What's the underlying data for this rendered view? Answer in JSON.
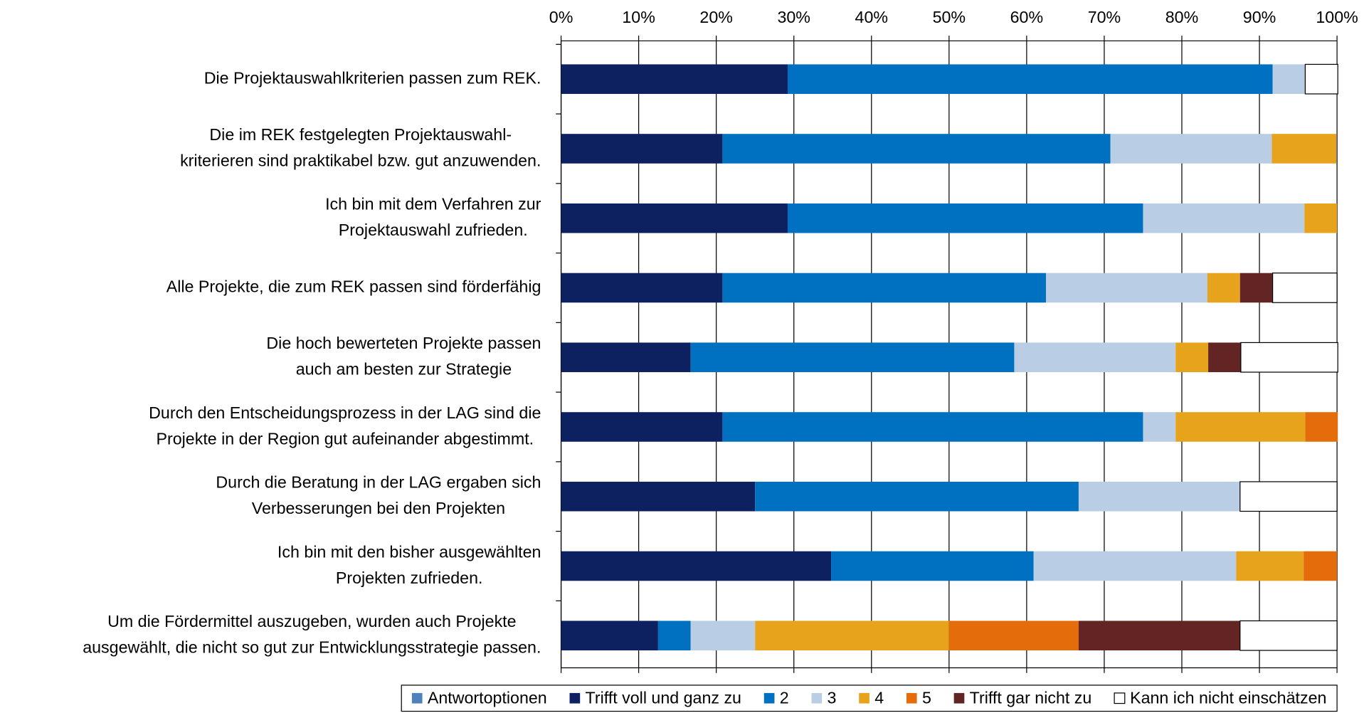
{
  "chart_data": {
    "type": "stacked-bar-horizontal",
    "categories": [
      [
        "Die Projektauswahlkriterien passen zum REK."
      ],
      [
        "Die im REK festgelegten Projektauswahl-",
        "kriterieren sind praktikabel bzw. gut anzuwenden."
      ],
      [
        "Ich bin mit dem Verfahren zur",
        "Projektauswahl zufrieden."
      ],
      [
        "Alle Projekte, die zum REK passen sind förderfähig"
      ],
      [
        "Die hoch bewerteten Projekte passen",
        "auch am besten zur Strategie"
      ],
      [
        "Durch den Entscheidungsprozess in der LAG sind die",
        "Projekte in der Region gut aufeinander abgestimmt."
      ],
      [
        "Durch die Beratung in der LAG ergaben sich",
        "Verbesserungen bei den Projekten"
      ],
      [
        "Ich bin mit den bisher ausgewählten",
        "Projekten zufrieden."
      ],
      [
        "Um die Fördermittel auszugeben, wurden auch Projekte",
        "ausgewählt, die nicht so gut zur Entwicklungsstrategie passen."
      ]
    ],
    "series": [
      {
        "name": "Antwortoptionen",
        "color": "#4f81bd",
        "values": [
          null,
          null,
          null,
          null,
          null,
          null,
          null,
          null,
          null
        ]
      },
      {
        "name": "Trifft voll und ganz zu",
        "color": "#0d2160",
        "values": [
          29.2,
          20.8,
          29.2,
          20.8,
          16.7,
          20.8,
          25.0,
          34.8,
          12.5
        ]
      },
      {
        "name": "2",
        "color": "#0070c0",
        "values": [
          62.5,
          50.0,
          45.8,
          41.7,
          41.7,
          54.2,
          41.7,
          26.1,
          4.2
        ]
      },
      {
        "name": "3",
        "color": "#b9cde5",
        "values": [
          4.2,
          20.8,
          20.8,
          20.8,
          20.8,
          4.2,
          20.8,
          26.1,
          8.3
        ]
      },
      {
        "name": "4",
        "color": "#e8a31c",
        "values": [
          0,
          8.3,
          4.2,
          4.2,
          4.2,
          16.7,
          0,
          8.7,
          25.0
        ]
      },
      {
        "name": "5",
        "color": "#e46c0a",
        "values": [
          0,
          0,
          0,
          0,
          0,
          4.2,
          0,
          4.3,
          16.7
        ]
      },
      {
        "name": "Trifft gar nicht zu",
        "color": "#632523",
        "values": [
          0,
          0,
          0,
          4.2,
          4.2,
          0,
          0,
          0,
          20.8
        ]
      },
      {
        "name": "Kann ich nicht einschätzen",
        "color": "#ffffff",
        "values": [
          4.2,
          0,
          0,
          8.3,
          12.5,
          0,
          12.5,
          0,
          12.5
        ]
      }
    ],
    "xlim": [
      0,
      100
    ],
    "xticks": [
      {
        "value": 0,
        "label": "0%"
      },
      {
        "value": 10,
        "label": "10%"
      },
      {
        "value": 20,
        "label": "20%"
      },
      {
        "value": 30,
        "label": "30%"
      },
      {
        "value": 40,
        "label": "40%"
      },
      {
        "value": 50,
        "label": "50%"
      },
      {
        "value": 60,
        "label": "60%"
      },
      {
        "value": 70,
        "label": "70%"
      },
      {
        "value": 80,
        "label": "80%"
      },
      {
        "value": 90,
        "label": "90%"
      },
      {
        "value": 100,
        "label": "100%"
      }
    ],
    "grid": true,
    "legend": "bottom"
  }
}
